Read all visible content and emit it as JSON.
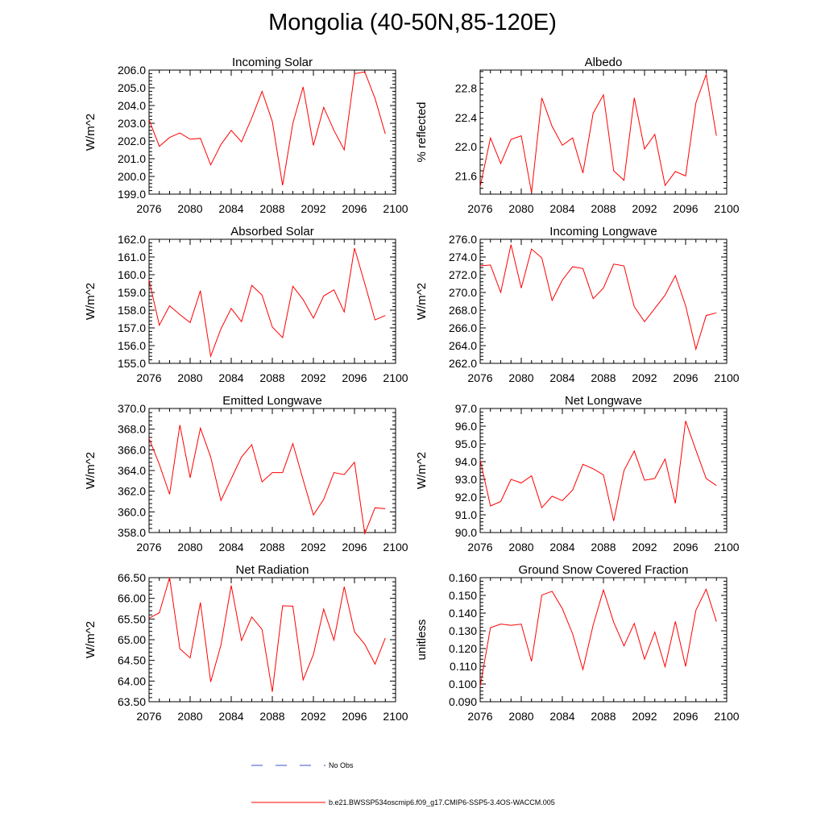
{
  "title": "Mongolia (40-50N,85-120E)",
  "legend": {
    "no_obs": "No Obs",
    "model": "b.e21.BWSSP534oscmip6.f09_g17.CMIP6-SSP5-3.4OS-WACCM.005",
    "no_obs_color": "#3a4fd0",
    "model_color": "#ff0000"
  },
  "chart_data": [
    {
      "type": "line",
      "title": "Incoming Solar",
      "ylabel": "W/m^2",
      "xlim": [
        2076,
        2100
      ],
      "ylim": [
        199.0,
        206.0
      ],
      "xticks": [
        2076,
        2080,
        2084,
        2088,
        2092,
        2096,
        2100
      ],
      "yticks": [
        199.0,
        200.0,
        201.0,
        202.0,
        203.0,
        204.0,
        205.0,
        206.0
      ],
      "ytick_labels": [
        "199.0",
        "200.0",
        "201.0",
        "202.0",
        "203.0",
        "204.0",
        "205.0",
        "206.0"
      ],
      "x": [
        2076,
        2077,
        2078,
        2079,
        2080,
        2081,
        2082,
        2083,
        2084,
        2085,
        2086,
        2087,
        2088,
        2089,
        2090,
        2091,
        2092,
        2093,
        2094,
        2095,
        2096,
        2097,
        2098,
        2099
      ],
      "values": [
        203.2,
        201.7,
        202.2,
        202.45,
        202.1,
        202.15,
        200.65,
        201.8,
        202.6,
        201.95,
        203.3,
        204.8,
        203.1,
        199.5,
        203.0,
        205.05,
        201.75,
        203.9,
        202.6,
        201.5,
        205.8,
        205.9,
        204.4,
        202.4
      ]
    },
    {
      "type": "line",
      "title": "Albedo",
      "ylabel": "% reflected",
      "xlim": [
        2076,
        2100
      ],
      "ylim": [
        21.35,
        23.05
      ],
      "xticks": [
        2076,
        2080,
        2084,
        2088,
        2092,
        2096,
        2100
      ],
      "yticks": [
        21.6,
        22.0,
        22.4,
        22.8
      ],
      "ytick_labels": [
        "21.6",
        "22.0",
        "22.4",
        "22.8"
      ],
      "x": [
        2076,
        2077,
        2078,
        2079,
        2080,
        2081,
        2082,
        2083,
        2084,
        2085,
        2086,
        2087,
        2088,
        2089,
        2090,
        2091,
        2092,
        2093,
        2094,
        2095,
        2096,
        2097,
        2098,
        2099
      ],
      "values": [
        21.45,
        22.12,
        21.77,
        22.1,
        22.15,
        21.37,
        22.67,
        22.28,
        22.02,
        22.12,
        21.64,
        22.46,
        22.71,
        21.67,
        21.54,
        22.67,
        21.97,
        22.17,
        21.47,
        21.66,
        21.6,
        22.6,
        22.99,
        22.15
      ]
    },
    {
      "type": "line",
      "title": "Absorbed Solar",
      "ylabel": "W/m^2",
      "xlim": [
        2076,
        2100
      ],
      "ylim": [
        155.0,
        162.0
      ],
      "xticks": [
        2076,
        2080,
        2084,
        2088,
        2092,
        2096,
        2100
      ],
      "yticks": [
        155.0,
        156.0,
        157.0,
        158.0,
        159.0,
        160.0,
        161.0,
        162.0
      ],
      "ytick_labels": [
        "155.0",
        "156.0",
        "157.0",
        "158.0",
        "159.0",
        "160.0",
        "161.0",
        "162.0"
      ],
      "x": [
        2076,
        2077,
        2078,
        2079,
        2080,
        2081,
        2082,
        2083,
        2084,
        2085,
        2086,
        2087,
        2088,
        2089,
        2090,
        2091,
        2092,
        2093,
        2094,
        2095,
        2096,
        2097,
        2098,
        2099
      ],
      "values": [
        159.7,
        157.15,
        158.25,
        157.75,
        157.3,
        159.1,
        155.4,
        156.95,
        158.1,
        157.35,
        159.4,
        158.85,
        157.05,
        156.45,
        159.35,
        158.6,
        157.55,
        158.8,
        159.15,
        157.9,
        161.5,
        159.5,
        157.45,
        157.7
      ]
    },
    {
      "type": "line",
      "title": "Incoming Longwave",
      "ylabel": "W/m^2",
      "xlim": [
        2076,
        2100
      ],
      "ylim": [
        262.0,
        276.0
      ],
      "xticks": [
        2076,
        2080,
        2084,
        2088,
        2092,
        2096,
        2100
      ],
      "yticks": [
        262.0,
        264.0,
        266.0,
        268.0,
        270.0,
        272.0,
        274.0,
        276.0
      ],
      "ytick_labels": [
        "262.0",
        "264.0",
        "266.0",
        "268.0",
        "270.0",
        "272.0",
        "274.0",
        "276.0"
      ],
      "x": [
        2076,
        2077,
        2078,
        2079,
        2080,
        2081,
        2082,
        2083,
        2084,
        2085,
        2086,
        2087,
        2088,
        2089,
        2090,
        2091,
        2092,
        2093,
        2094,
        2095,
        2096,
        2097,
        2098,
        2099
      ],
      "values": [
        273.0,
        273.1,
        270.0,
        275.4,
        270.5,
        274.9,
        273.9,
        269.1,
        271.4,
        272.9,
        272.7,
        269.3,
        270.5,
        273.2,
        273.0,
        268.4,
        266.7,
        268.2,
        269.7,
        271.9,
        268.5,
        263.6,
        267.4,
        267.7
      ]
    },
    {
      "type": "line",
      "title": "Emitted Longwave",
      "ylabel": "W/m^2",
      "xlim": [
        2076,
        2100
      ],
      "ylim": [
        358.0,
        370.0
      ],
      "xticks": [
        2076,
        2080,
        2084,
        2088,
        2092,
        2096,
        2100
      ],
      "yticks": [
        358.0,
        360.0,
        362.0,
        364.0,
        366.0,
        368.0,
        370.0
      ],
      "ytick_labels": [
        "358.0",
        "360.0",
        "362.0",
        "364.0",
        "366.0",
        "368.0",
        "370.0"
      ],
      "x": [
        2076,
        2077,
        2078,
        2079,
        2080,
        2081,
        2082,
        2083,
        2084,
        2085,
        2086,
        2087,
        2088,
        2089,
        2090,
        2091,
        2092,
        2093,
        2094,
        2095,
        2096,
        2097,
        2098,
        2099
      ],
      "values": [
        367.1,
        364.6,
        361.7,
        368.4,
        363.3,
        368.1,
        365.3,
        361.1,
        363.2,
        365.3,
        366.5,
        362.9,
        363.8,
        363.8,
        366.6,
        363.1,
        359.7,
        361.2,
        363.8,
        363.6,
        364.8,
        357.9,
        360.4,
        360.3
      ]
    },
    {
      "type": "line",
      "title": "Net Longwave",
      "ylabel": "W/m^2",
      "xlim": [
        2076,
        2100
      ],
      "ylim": [
        90.0,
        97.0
      ],
      "xticks": [
        2076,
        2080,
        2084,
        2088,
        2092,
        2096,
        2100
      ],
      "yticks": [
        90.0,
        91.0,
        92.0,
        93.0,
        94.0,
        95.0,
        96.0,
        97.0
      ],
      "ytick_labels": [
        "90.0",
        "91.0",
        "92.0",
        "93.0",
        "94.0",
        "95.0",
        "96.0",
        "97.0"
      ],
      "x": [
        2076,
        2077,
        2078,
        2079,
        2080,
        2081,
        2082,
        2083,
        2084,
        2085,
        2086,
        2087,
        2088,
        2089,
        2090,
        2091,
        2092,
        2093,
        2094,
        2095,
        2096,
        2097,
        2098,
        2099
      ],
      "values": [
        94.1,
        91.5,
        91.75,
        93.0,
        92.8,
        93.2,
        91.4,
        92.05,
        91.8,
        92.4,
        93.85,
        93.6,
        93.25,
        90.65,
        93.5,
        94.6,
        92.95,
        93.05,
        94.15,
        91.65,
        96.3,
        94.65,
        93.05,
        92.65
      ]
    },
    {
      "type": "line",
      "title": "Net Radiation",
      "ylabel": "W/m^2",
      "xlim": [
        2076,
        2100
      ],
      "ylim": [
        63.5,
        66.5
      ],
      "xticks": [
        2076,
        2080,
        2084,
        2088,
        2092,
        2096,
        2100
      ],
      "yticks": [
        63.5,
        64.0,
        64.5,
        65.0,
        65.5,
        66.0,
        66.5
      ],
      "ytick_labels": [
        "63.50",
        "64.00",
        "64.50",
        "65.00",
        "65.50",
        "66.00",
        "66.50"
      ],
      "x": [
        2076,
        2077,
        2078,
        2079,
        2080,
        2081,
        2082,
        2083,
        2084,
        2085,
        2086,
        2087,
        2088,
        2089,
        2090,
        2091,
        2092,
        2093,
        2094,
        2095,
        2096,
        2097,
        2098,
        2099
      ],
      "values": [
        65.52,
        65.65,
        66.5,
        64.78,
        64.56,
        65.9,
        63.98,
        64.87,
        66.31,
        64.98,
        65.55,
        65.25,
        63.74,
        65.82,
        65.81,
        64.03,
        64.64,
        65.74,
        64.99,
        66.28,
        65.19,
        64.89,
        64.41,
        65.04
      ]
    },
    {
      "type": "line",
      "title": "Ground Snow Covered Fraction",
      "ylabel": "unitless",
      "xlim": [
        2076,
        2100
      ],
      "ylim": [
        0.09,
        0.16
      ],
      "xticks": [
        2076,
        2080,
        2084,
        2088,
        2092,
        2096,
        2100
      ],
      "yticks": [
        0.09,
        0.1,
        0.11,
        0.12,
        0.13,
        0.14,
        0.15,
        0.16
      ],
      "ytick_labels": [
        "0.090",
        "0.100",
        "0.110",
        "0.120",
        "0.130",
        "0.140",
        "0.150",
        "0.160"
      ],
      "x": [
        2076,
        2077,
        2078,
        2079,
        2080,
        2081,
        2082,
        2083,
        2084,
        2085,
        2086,
        2087,
        2088,
        2089,
        2090,
        2091,
        2092,
        2093,
        2094,
        2095,
        2096,
        2097,
        2098,
        2099
      ],
      "values": [
        0.0985,
        0.1318,
        0.1338,
        0.1331,
        0.1338,
        0.1128,
        0.1502,
        0.1523,
        0.1425,
        0.1283,
        0.1082,
        0.1333,
        0.1531,
        0.1348,
        0.1215,
        0.1342,
        0.114,
        0.1293,
        0.1097,
        0.1353,
        0.1099,
        0.1416,
        0.1535,
        0.1352
      ]
    }
  ]
}
